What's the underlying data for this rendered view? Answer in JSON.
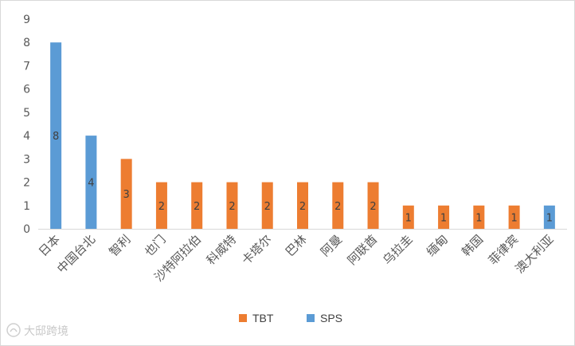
{
  "chart_data": {
    "type": "bar",
    "stacked": true,
    "categories": [
      "日本",
      "中国台北",
      "智利",
      "也门",
      "沙特阿拉伯",
      "科威特",
      "卡塔尔",
      "巴林",
      "阿曼",
      "阿联酋",
      "乌拉圭",
      "缅甸",
      "韩国",
      "菲律宾",
      "澳大利亚"
    ],
    "series": [
      {
        "name": "TBT",
        "color": "#ed7d31",
        "values": [
          0,
          0,
          3,
          2,
          2,
          2,
          2,
          2,
          2,
          2,
          1,
          1,
          1,
          1,
          0
        ]
      },
      {
        "name": "SPS",
        "color": "#5b9bd5",
        "values": [
          8,
          4,
          0,
          0,
          0,
          0,
          0,
          0,
          0,
          0,
          0,
          0,
          0,
          0,
          1
        ]
      }
    ],
    "ylim": [
      0,
      9
    ],
    "yticks": [
      0,
      1,
      2,
      3,
      4,
      5,
      6,
      7,
      8,
      9
    ],
    "grid": false,
    "legend_position": "bottom",
    "data_labels": true
  },
  "watermark": {
    "text": "大邸跨境",
    "icon": "watermark-logo-icon"
  }
}
